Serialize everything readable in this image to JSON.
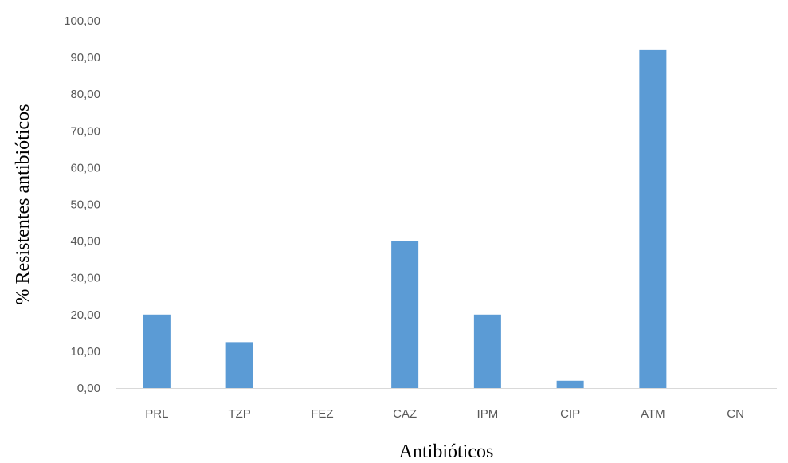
{
  "chart_data": {
    "type": "bar",
    "categories": [
      "PRL",
      "TZP",
      "FEZ",
      "CAZ",
      "IPM",
      "CIP",
      "ATM",
      "CN"
    ],
    "values": [
      20.0,
      12.5,
      0.0,
      40.0,
      20.0,
      2.0,
      92.0,
      0.0
    ],
    "xlabel": "Antibióticos",
    "ylabel": "% Resistentes antibióticos",
    "ylim": [
      0,
      100
    ],
    "yticks": [
      "0,00",
      "10,00",
      "20,00",
      "30,00",
      "40,00",
      "50,00",
      "60,00",
      "70,00",
      "80,00",
      "90,00",
      "100,00"
    ],
    "bar_color": "#5b9bd5",
    "grid": false,
    "legend": "none"
  }
}
